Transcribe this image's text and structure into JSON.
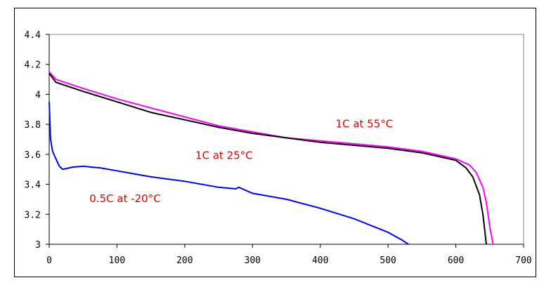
{
  "chart_data": {
    "type": "line",
    "title": "",
    "xlabel": "",
    "ylabel": "",
    "xlim": [
      0,
      700
    ],
    "ylim": [
      3.0,
      4.4
    ],
    "x_ticks": [
      "0",
      "100",
      "200",
      "300",
      "400",
      "500",
      "600",
      "700"
    ],
    "y_ticks": [
      "3",
      "3.2",
      "3.4",
      "3.6",
      "3.8",
      "4",
      "4.2",
      "4.4"
    ],
    "grid": false,
    "series": [
      {
        "name": "1C at 55°C",
        "color": "#ff00ff",
        "x": [
          0,
          10,
          50,
          100,
          150,
          200,
          250,
          300,
          350,
          400,
          450,
          500,
          550,
          580,
          600,
          620,
          630,
          640,
          645,
          650,
          655
        ],
        "y": [
          4.15,
          4.1,
          4.04,
          3.97,
          3.91,
          3.85,
          3.79,
          3.75,
          3.71,
          3.69,
          3.67,
          3.65,
          3.62,
          3.59,
          3.57,
          3.53,
          3.48,
          3.38,
          3.28,
          3.12,
          3.0
        ]
      },
      {
        "name": "1C at 25°C",
        "color": "#000000",
        "x": [
          0,
          10,
          50,
          100,
          150,
          200,
          250,
          300,
          350,
          400,
          450,
          500,
          550,
          580,
          600,
          615,
          625,
          635,
          640,
          645
        ],
        "y": [
          4.14,
          4.08,
          4.02,
          3.95,
          3.88,
          3.83,
          3.78,
          3.74,
          3.71,
          3.68,
          3.66,
          3.64,
          3.61,
          3.58,
          3.56,
          3.51,
          3.45,
          3.33,
          3.2,
          3.0
        ]
      },
      {
        "name": "0.5C at -20°C",
        "color": "#0000ff",
        "x": [
          0,
          2,
          5,
          10,
          15,
          20,
          25,
          35,
          50,
          75,
          100,
          125,
          150,
          200,
          250,
          275,
          280,
          285,
          300,
          350,
          400,
          450,
          500,
          520,
          530
        ],
        "y": [
          3.95,
          3.7,
          3.62,
          3.57,
          3.52,
          3.5,
          3.505,
          3.515,
          3.52,
          3.51,
          3.49,
          3.47,
          3.45,
          3.42,
          3.38,
          3.37,
          3.38,
          3.37,
          3.34,
          3.3,
          3.24,
          3.17,
          3.08,
          3.03,
          3.0
        ]
      }
    ],
    "annotations": [
      {
        "text": "1C at 55°C",
        "x": 465,
        "y": 3.78
      },
      {
        "text": "1C at 25°C",
        "x": 258,
        "y": 3.57
      },
      {
        "text": "0.5C at -20°C",
        "x": 112,
        "y": 3.28
      }
    ]
  }
}
